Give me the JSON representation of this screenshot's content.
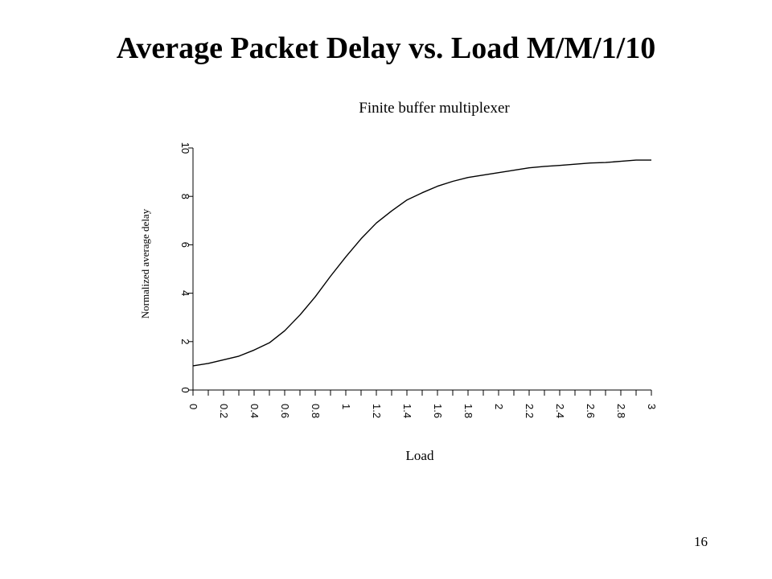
{
  "slide": {
    "title": "Average Packet Delay vs. Load M/M/1/10",
    "page_number": "16"
  },
  "chart_data": {
    "type": "line",
    "title": "Finite buffer multiplexer",
    "xlabel": "Load",
    "ylabel": "Normalized average delay",
    "xlim": [
      0,
      3
    ],
    "ylim": [
      0,
      10
    ],
    "x_tick_labels": [
      "0",
      "0.2",
      "0.4",
      "0.6",
      "0.8",
      "1",
      "1.2",
      "1.4",
      "1.6",
      "1.8",
      "2",
      "2.2",
      "2.4",
      "2.6",
      "2.8",
      "3"
    ],
    "y_tick_labels": [
      "0",
      "2",
      "4",
      "6",
      "8",
      "10"
    ],
    "grid": false,
    "legend": "none",
    "series": [
      {
        "color": "#000000",
        "x": [
          0,
          0.1,
          0.2,
          0.3,
          0.4,
          0.5,
          0.6,
          0.7,
          0.8,
          0.9,
          1.0,
          1.1,
          1.2,
          1.3,
          1.4,
          1.5,
          1.6,
          1.7,
          1.8,
          1.9,
          2.0,
          2.1,
          2.2,
          2.3,
          2.4,
          2.5,
          2.6,
          2.7,
          2.8,
          2.9,
          3.0
        ],
        "y": [
          1.0,
          1.1,
          1.25,
          1.4,
          1.65,
          1.95,
          2.45,
          3.1,
          3.85,
          4.7,
          5.5,
          6.25,
          6.9,
          7.4,
          7.85,
          8.15,
          8.42,
          8.62,
          8.78,
          8.88,
          8.98,
          9.08,
          9.18,
          9.24,
          9.28,
          9.33,
          9.38,
          9.4,
          9.45,
          9.5,
          9.5
        ]
      }
    ]
  }
}
